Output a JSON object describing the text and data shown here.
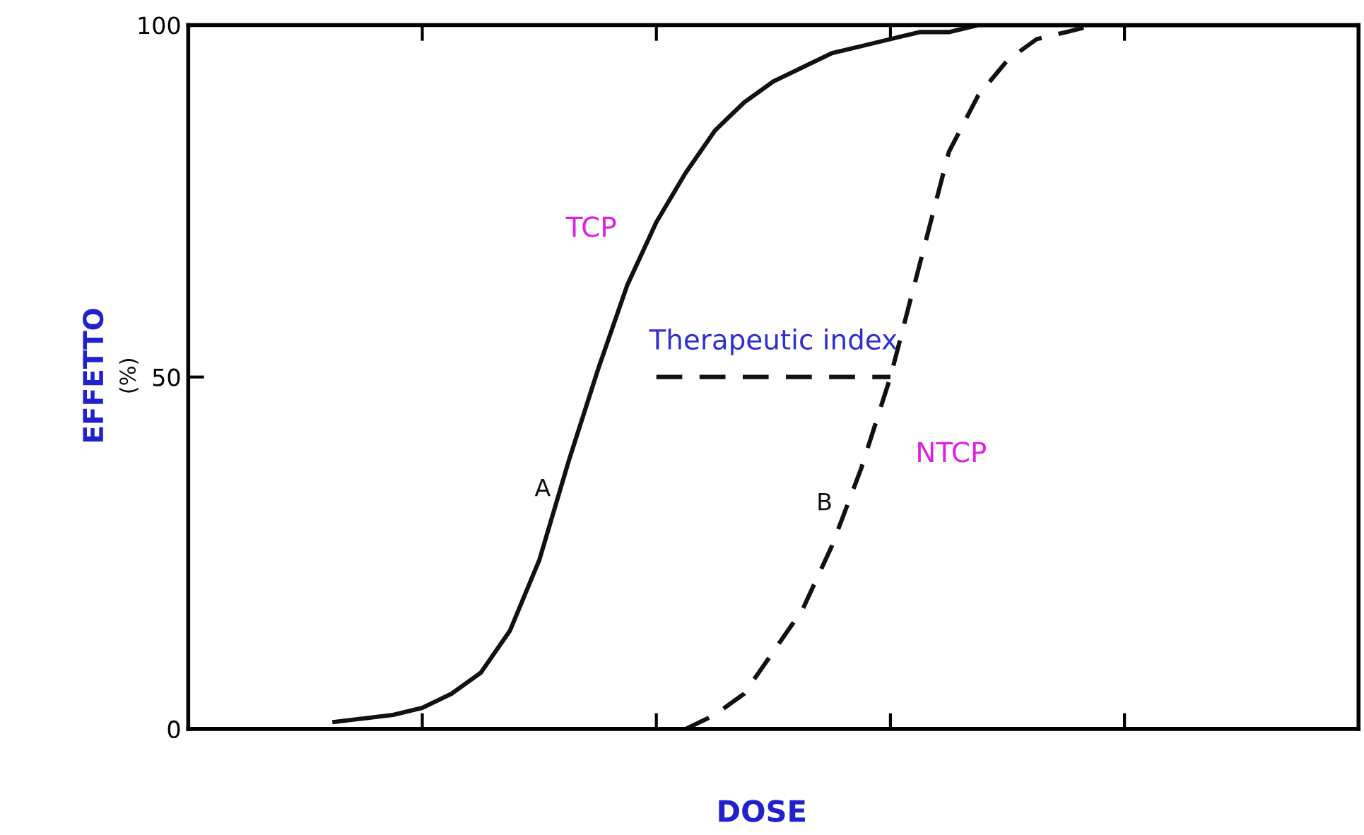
{
  "chart_data": {
    "type": "line",
    "xlabel": "DOSE",
    "ylabel": "EFFETTO\n(%)",
    "categories": [
      null,
      null,
      null,
      null,
      null,
      null,
      null,
      null,
      null,
      null,
      null,
      null,
      null,
      null,
      null,
      null,
      null,
      null,
      null,
      null,
      null,
      null,
      null,
      null,
      null,
      null,
      null,
      null,
      null,
      null,
      null,
      null,
      null,
      null,
      null,
      null,
      null,
      null,
      null,
      null,
      null
    ],
    "ylim": [
      0,
      100
    ],
    "yticks": [
      0,
      50,
      100
    ],
    "grid": false,
    "legend": false,
    "series": [
      {
        "name": "TCP",
        "color": "#111111",
        "line_style": "solid",
        "values": [
          null,
          null,
          null,
          null,
          null,
          1,
          1.5,
          2,
          3,
          5,
          8,
          14,
          24,
          38,
          51,
          63,
          72,
          79,
          85,
          89,
          92,
          94,
          96,
          97,
          98,
          99,
          99,
          100,
          100,
          100,
          100,
          100,
          100,
          100,
          100,
          100,
          100,
          100,
          100,
          100,
          100
        ]
      },
      {
        "name": "NTCP",
        "color": "#111111",
        "line_style": "dashed",
        "values": [
          null,
          null,
          null,
          null,
          null,
          null,
          null,
          null,
          null,
          null,
          null,
          null,
          null,
          null,
          null,
          null,
          null,
          0,
          2,
          5,
          11,
          17,
          26,
          37,
          50,
          66,
          82,
          90,
          95,
          98,
          99,
          100,
          null,
          null,
          null,
          null,
          null,
          null,
          null,
          null,
          null
        ]
      },
      {
        "color": "#111111",
        "line_style": "dashed",
        "values": [
          null,
          null,
          null,
          null,
          null,
          null,
          null,
          null,
          null,
          null,
          null,
          null,
          null,
          null,
          null,
          null,
          50,
          50,
          50,
          50,
          50,
          50,
          50,
          50,
          50,
          null,
          null,
          null,
          null,
          null,
          null,
          null,
          null,
          null,
          null,
          null,
          null,
          null,
          null,
          null,
          null
        ]
      }
    ],
    "annotations": [
      "A",
      "B",
      "Therapeutic index"
    ]
  }
}
